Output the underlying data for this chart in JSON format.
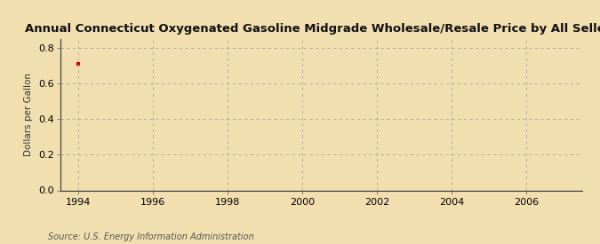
{
  "title": "Annual Connecticut Oxygenated Gasoline Midgrade Wholesale/Resale Price by All Sellers",
  "ylabel": "Dollars per Gallon",
  "source": "Source: U.S. Energy Information Administration",
  "data_x": [
    1994
  ],
  "data_y": [
    0.71
  ],
  "data_color": "#cc0000",
  "xlim": [
    1993.5,
    2007.5
  ],
  "ylim": [
    0.0,
    0.85
  ],
  "yticks": [
    0.0,
    0.2,
    0.4,
    0.6,
    0.8
  ],
  "xticks": [
    1994,
    1996,
    1998,
    2000,
    2002,
    2004,
    2006
  ],
  "background_color": "#f2dfb0",
  "plot_bg_color": "#f2deba",
  "grid_color": "#999999",
  "title_fontsize": 9.5,
  "label_fontsize": 7.5,
  "tick_fontsize": 8,
  "source_fontsize": 7
}
